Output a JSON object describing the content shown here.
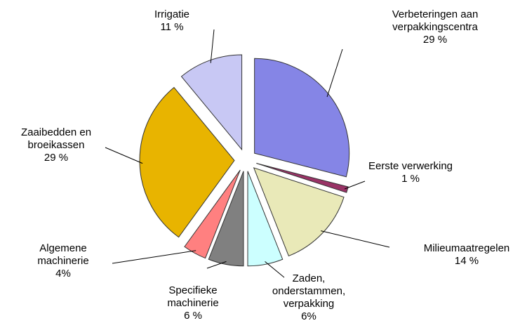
{
  "chart_data": {
    "type": "pie",
    "categories": [
      "Verbeteringen aan verpakkingscentra",
      "Eerste verwerking",
      "Milieumaatregelen",
      "Zaden, onderstammen, verpakking",
      "Specifieke machinerie",
      "Algemene machinerie",
      "Zaaibedden en broeikassen",
      "Irrigatie"
    ],
    "values": [
      29,
      1,
      14,
      6,
      6,
      4,
      29,
      11
    ],
    "value_labels": [
      "29 %",
      "1 %",
      "14 %",
      "6%",
      "6 %",
      "4%",
      "29 %",
      "11 %"
    ],
    "colors": [
      "#8585e6",
      "#993366",
      "#e9e9b8",
      "#ccffff",
      "#808080",
      "#ff8080",
      "#e8b400",
      "#c8c8f4"
    ]
  }
}
